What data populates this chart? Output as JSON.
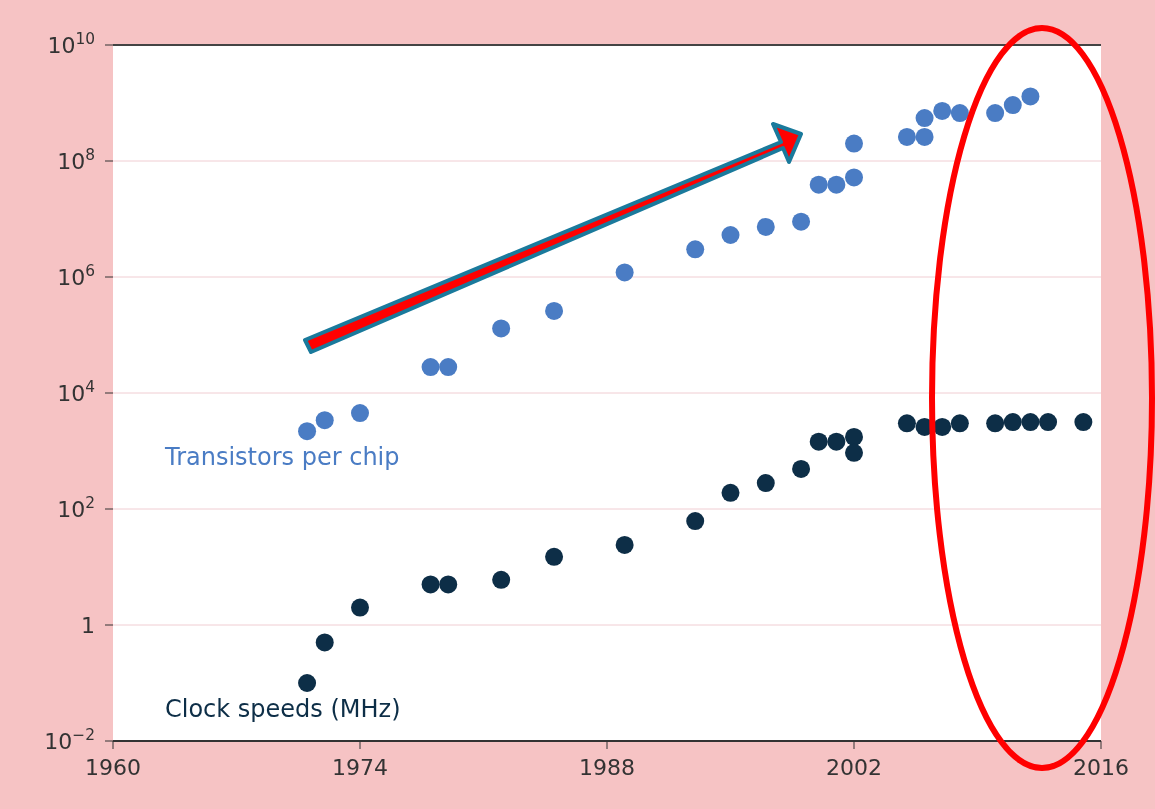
{
  "chart_data": {
    "type": "scatter",
    "marker": "circle",
    "grid": "y",
    "legend": false,
    "xlim": [
      1960,
      2016
    ],
    "xticks": [
      1960,
      1974,
      1988,
      2002,
      2016
    ],
    "log": "y",
    "ylim": [
      0.01,
      10000000000
    ],
    "yticks": [
      {
        "value": 0.01,
        "label": "10$^{−2}$"
      },
      {
        "value": 1,
        "label": "1"
      },
      {
        "value": 100,
        "label": "10$^{2}$"
      },
      {
        "value": 10000,
        "label": "10$^{4}$"
      },
      {
        "value": 1000000,
        "label": "10$^{6}$"
      },
      {
        "value": 100000000,
        "label": "10$^{8}$"
      },
      {
        "value": 10000000000,
        "label": "10$^{10}$"
      }
    ],
    "series": [
      {
        "name": "Transistors per chip",
        "color": "#4a7cc4",
        "x": [
          1971,
          1972,
          1974,
          1978,
          1979,
          1982,
          1985,
          1989,
          1993,
          1995,
          1997,
          1999,
          2000,
          2001,
          2002,
          2002,
          2005,
          2006,
          2006,
          2007,
          2008,
          2010,
          2011,
          2012
        ],
        "values": [
          2200,
          3400,
          4500,
          28000,
          28000,
          130000,
          260000,
          1200000,
          3000000,
          5300000,
          7300000,
          9000000,
          39000000,
          39000000,
          52000000,
          200000000,
          260000000,
          260000000,
          550000000,
          730000000,
          670000000,
          670000000,
          920000000,
          1300000000
        ]
      },
      {
        "name": "Clock speeds (MHz)",
        "color": "#0d2e47",
        "x": [
          1971,
          1972,
          1974,
          1978,
          1979,
          1982,
          1985,
          1989,
          1993,
          1995,
          1997,
          1999,
          2000,
          2001,
          2002,
          2002,
          2005,
          2006,
          2007,
          2008,
          2010,
          2011,
          2012,
          2013,
          2015
        ],
        "values": [
          0.1,
          0.5,
          2,
          5,
          5,
          6,
          15,
          24,
          62,
          190,
          280,
          490,
          1450,
          1450,
          1750,
          930,
          3000,
          2600,
          2600,
          3000,
          3000,
          3150,
          3150,
          3150,
          3150
        ]
      }
    ]
  }
}
